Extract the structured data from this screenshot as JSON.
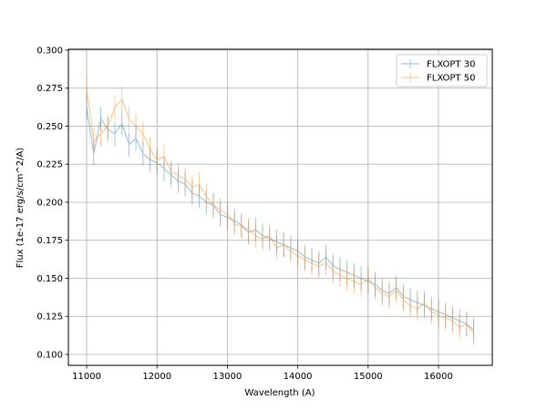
{
  "chart_data": {
    "type": "line",
    "title": "",
    "xlabel": "Wavelength (A)",
    "ylabel": "Flux (1e-17 erg/s/cm^2/A)",
    "xlim": [
      10740,
      16765
    ],
    "ylim": [
      0.0928,
      0.3006
    ],
    "xticks": [
      11000,
      12000,
      13000,
      14000,
      15000,
      16000
    ],
    "yticks": [
      0.1,
      0.125,
      0.15,
      0.175,
      0.2,
      0.225,
      0.25,
      0.275,
      0.3
    ],
    "xtick_labels": [
      "11000",
      "12000",
      "13000",
      "14000",
      "15000",
      "16000"
    ],
    "ytick_labels": [
      "0.100",
      "0.125",
      "0.150",
      "0.175",
      "0.200",
      "0.225",
      "0.250",
      "0.275",
      "0.300"
    ],
    "grid": true,
    "legend_position": "top-right",
    "x": [
      11000,
      11100,
      11200,
      11300,
      11400,
      11500,
      11600,
      11700,
      11800,
      11900,
      12000,
      12100,
      12200,
      12300,
      12400,
      12500,
      12600,
      12700,
      12800,
      12900,
      13000,
      13100,
      13200,
      13300,
      13400,
      13500,
      13600,
      13700,
      13800,
      13900,
      14000,
      14100,
      14200,
      14300,
      14400,
      14500,
      14600,
      14700,
      14800,
      14900,
      15000,
      15100,
      15200,
      15300,
      15400,
      15500,
      15600,
      15700,
      15800,
      15900,
      16000,
      16100,
      16200,
      16300,
      16400,
      16500
    ],
    "series": [
      {
        "name": "FLXOPT 30",
        "color": "#1f77b4",
        "yerr": 0.008,
        "values": [
          0.262,
          0.232,
          0.255,
          0.248,
          0.245,
          0.252,
          0.238,
          0.242,
          0.232,
          0.228,
          0.226,
          0.222,
          0.218,
          0.214,
          0.212,
          0.206,
          0.204,
          0.2,
          0.198,
          0.192,
          0.19,
          0.188,
          0.185,
          0.18,
          0.182,
          0.178,
          0.176,
          0.174,
          0.172,
          0.17,
          0.168,
          0.164,
          0.162,
          0.16,
          0.164,
          0.158,
          0.156,
          0.154,
          0.152,
          0.15,
          0.148,
          0.146,
          0.142,
          0.14,
          0.144,
          0.138,
          0.136,
          0.134,
          0.132,
          0.13,
          0.128,
          0.126,
          0.124,
          0.122,
          0.12,
          0.116
        ]
      },
      {
        "name": "FLXOPT 50",
        "color": "#ff7f0e",
        "yerr": 0.008,
        "values": [
          0.275,
          0.24,
          0.245,
          0.25,
          0.262,
          0.268,
          0.255,
          0.25,
          0.245,
          0.235,
          0.228,
          0.23,
          0.22,
          0.218,
          0.215,
          0.21,
          0.212,
          0.204,
          0.198,
          0.195,
          0.192,
          0.186,
          0.184,
          0.182,
          0.178,
          0.176,
          0.178,
          0.17,
          0.172,
          0.168,
          0.165,
          0.162,
          0.16,
          0.158,
          0.16,
          0.155,
          0.152,
          0.15,
          0.148,
          0.146,
          0.15,
          0.144,
          0.14,
          0.138,
          0.142,
          0.136,
          0.132,
          0.13,
          0.134,
          0.128,
          0.126,
          0.124,
          0.122,
          0.118,
          0.12,
          0.114
        ]
      }
    ]
  }
}
